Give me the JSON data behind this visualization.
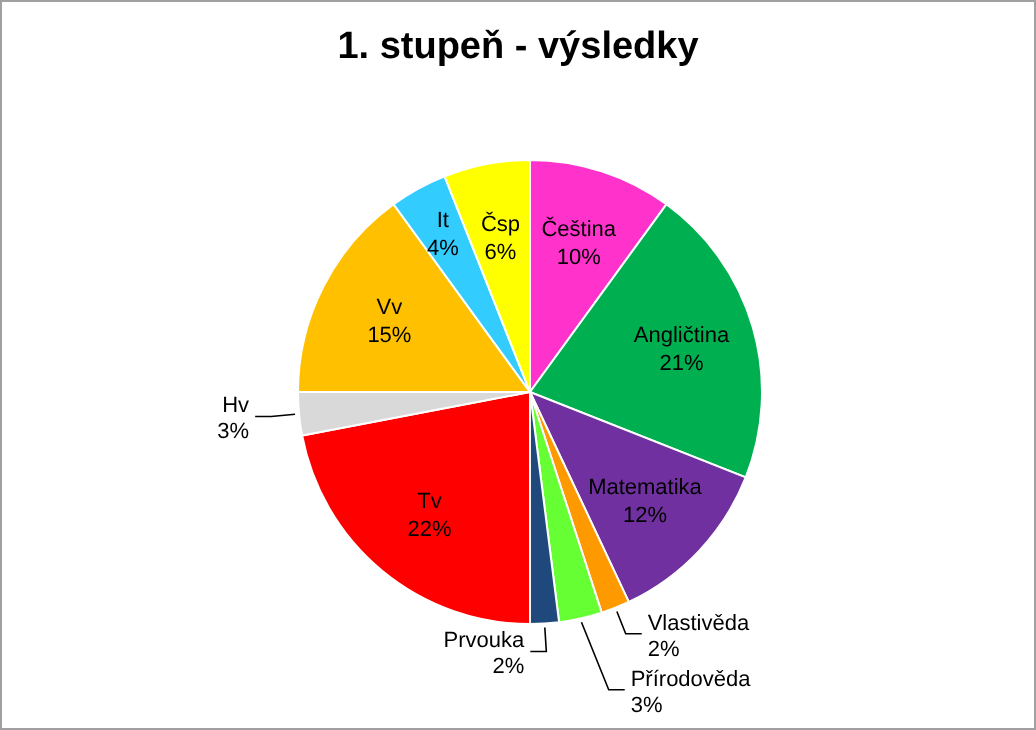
{
  "chart_data": {
    "type": "pie",
    "title": "1. stupeň - výsledky",
    "categories": [
      "Čeština",
      "Angličtina",
      "Matematika",
      "Vlastivěda",
      "Přírodověda",
      "Prvouka",
      "Tv",
      "Hv",
      "Vv",
      "It",
      "Čsp"
    ],
    "values": [
      10,
      21,
      12,
      2,
      3,
      2,
      22,
      3,
      15,
      4,
      6
    ],
    "value_labels": [
      "10%",
      "21%",
      "12%",
      "2%",
      "3%",
      "2%",
      "22%",
      "3%",
      "15%",
      "4%",
      "6%"
    ],
    "colors": [
      "#ff33cc",
      "#00b050",
      "#7030a0",
      "#ff9900",
      "#66ff33",
      "#1f497d",
      "#ff0000",
      "#d9d9d9",
      "#ffc000",
      "#33ccff",
      "#ffff00"
    ]
  }
}
